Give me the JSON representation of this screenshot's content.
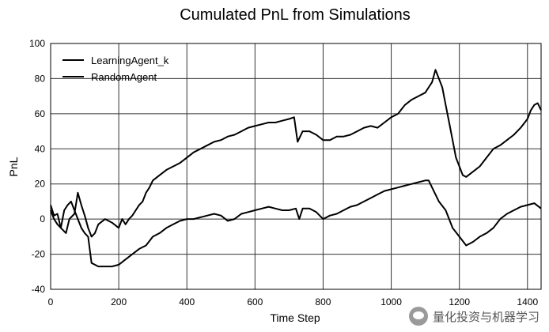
{
  "chart_data": {
    "type": "line",
    "title": "Cumulated PnL from Simulations",
    "xlabel": "Time Step",
    "ylabel": "PnL",
    "xlim": [
      0,
      1440
    ],
    "ylim": [
      -40,
      100
    ],
    "xticks": [
      0,
      200,
      400,
      600,
      800,
      1000,
      1200,
      1400
    ],
    "yticks": [
      -40,
      -20,
      0,
      20,
      40,
      60,
      80,
      100
    ],
    "grid": true,
    "legend": "top-left",
    "series": [
      {
        "name": "LearningAgent_k",
        "color": "#000000",
        "x": [
          0,
          10,
          20,
          30,
          45,
          55,
          70,
          80,
          90,
          100,
          110,
          120,
          130,
          140,
          160,
          180,
          200,
          210,
          220,
          230,
          240,
          250,
          260,
          270,
          280,
          290,
          300,
          320,
          340,
          360,
          380,
          400,
          420,
          440,
          460,
          480,
          500,
          520,
          540,
          560,
          580,
          600,
          620,
          640,
          660,
          680,
          700,
          715,
          725,
          740,
          760,
          780,
          800,
          820,
          840,
          860,
          880,
          900,
          920,
          940,
          960,
          980,
          1000,
          1020,
          1040,
          1060,
          1080,
          1100,
          1110,
          1120,
          1130,
          1140,
          1150,
          1160,
          1170,
          1180,
          1190,
          1200,
          1210,
          1220,
          1240,
          1260,
          1280,
          1300,
          1320,
          1340,
          1360,
          1380,
          1400,
          1410,
          1420,
          1430,
          1440
        ],
        "y": [
          8,
          2,
          3,
          -5,
          -8,
          0,
          3,
          15,
          8,
          2,
          -5,
          -10,
          -8,
          -3,
          0,
          -2,
          -5,
          0,
          -3,
          0,
          2,
          5,
          8,
          10,
          15,
          18,
          22,
          25,
          28,
          30,
          32,
          35,
          38,
          40,
          42,
          44,
          45,
          47,
          48,
          50,
          52,
          53,
          54,
          55,
          55,
          56,
          57,
          58,
          44,
          50,
          50,
          48,
          45,
          45,
          47,
          47,
          48,
          50,
          52,
          53,
          52,
          55,
          58,
          60,
          65,
          68,
          70,
          72,
          75,
          78,
          85,
          80,
          75,
          65,
          55,
          45,
          35,
          30,
          25,
          24,
          27,
          30,
          35,
          40,
          42,
          45,
          48,
          52,
          57,
          62,
          65,
          66,
          62
        ]
      },
      {
        "name": "RandomAgent",
        "color": "#000000",
        "x": [
          0,
          10,
          20,
          30,
          40,
          50,
          60,
          70,
          80,
          90,
          100,
          110,
          120,
          130,
          140,
          150,
          160,
          180,
          200,
          220,
          240,
          260,
          280,
          300,
          320,
          340,
          360,
          380,
          400,
          420,
          440,
          460,
          480,
          500,
          520,
          540,
          560,
          580,
          600,
          620,
          640,
          660,
          680,
          700,
          720,
          730,
          740,
          760,
          780,
          800,
          820,
          840,
          860,
          880,
          900,
          920,
          940,
          960,
          980,
          1000,
          1020,
          1040,
          1060,
          1080,
          1100,
          1110,
          1120,
          1140,
          1160,
          1180,
          1200,
          1220,
          1240,
          1260,
          1280,
          1300,
          1320,
          1340,
          1360,
          1380,
          1400,
          1420,
          1440
        ],
        "y": [
          5,
          0,
          -3,
          -5,
          5,
          8,
          10,
          5,
          0,
          -5,
          -8,
          -10,
          -25,
          -26,
          -27,
          -27,
          -27,
          -27,
          -26,
          -23,
          -20,
          -17,
          -15,
          -10,
          -8,
          -5,
          -3,
          -1,
          0,
          0,
          1,
          2,
          3,
          2,
          -1,
          0,
          3,
          4,
          5,
          6,
          7,
          6,
          5,
          5,
          6,
          0,
          6,
          6,
          4,
          0,
          2,
          3,
          5,
          7,
          8,
          10,
          12,
          14,
          16,
          17,
          18,
          19,
          20,
          21,
          22,
          22,
          18,
          10,
          5,
          -5,
          -10,
          -15,
          -13,
          -10,
          -8,
          -5,
          0,
          3,
          5,
          7,
          8,
          9,
          6
        ]
      }
    ]
  },
  "watermark": {
    "text": "量化投资与机器学习",
    "icon": "wechat-icon"
  }
}
